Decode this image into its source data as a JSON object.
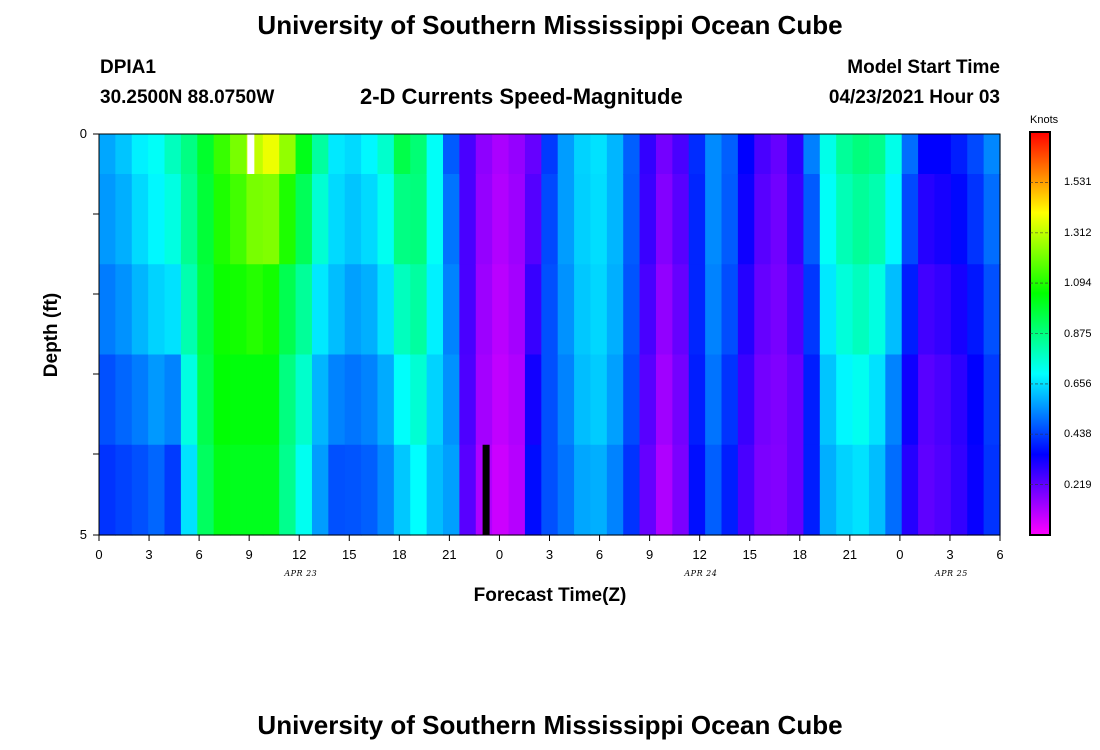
{
  "page": {
    "title_top": "University of Southern Mississippi Ocean Cube",
    "title_bottom": "University of Southern Mississippi Ocean Cube",
    "station_id": "DPIA1",
    "coordinates": "30.2500N  88.0750W",
    "plot_title": "2-D Currents Speed-Magnitude",
    "model_start_label": "Model Start Time",
    "model_start_value": "04/23/2021 Hour 03"
  },
  "chart_data": {
    "type": "heatmap",
    "title": "2-D Currents Speed-Magnitude",
    "xlabel": "Forecast Time(Z)",
    "ylabel": "Depth (ft)",
    "ylim": [
      0,
      5
    ],
    "y_tick_labels": [
      "0",
      "5"
    ],
    "x_tick_labels": [
      "0",
      "3",
      "6",
      "9",
      "12",
      "15",
      "18",
      "21",
      "0",
      "3",
      "6",
      "9",
      "12",
      "15",
      "18",
      "21",
      "0",
      "3",
      "6"
    ],
    "date_labels": [
      "APR 23",
      "APR 24",
      "APR 25"
    ],
    "colorbar": {
      "unit": "Knots",
      "tick_labels": [
        "0.219",
        "0.438",
        "0.656",
        "0.875",
        "1.094",
        "1.312",
        "1.531"
      ],
      "ticks": [
        0.219,
        0.438,
        0.656,
        0.875,
        1.094,
        1.312,
        1.531
      ],
      "range": [
        0,
        1.75
      ]
    },
    "x_range_hours": [
      0,
      54
    ],
    "depth_layers": 5,
    "markers": [
      {
        "color": "#ffffff",
        "hour": 9.1,
        "layer": 0
      },
      {
        "color": "#000000",
        "hour": 23.2,
        "layer": 4
      }
    ],
    "speeds": [
      [
        0.6,
        0.56,
        0.56,
        0.48,
        0.44,
        0.4
      ],
      [
        0.64,
        0.6,
        0.58,
        0.52,
        0.46,
        0.42
      ],
      [
        0.7,
        0.66,
        0.64,
        0.56,
        0.48,
        0.44
      ],
      [
        0.72,
        0.7,
        0.68,
        0.6,
        0.52,
        0.46
      ],
      [
        0.82,
        0.76,
        0.72,
        0.6,
        0.46,
        0.4
      ],
      [
        0.88,
        0.86,
        0.84,
        0.78,
        0.7,
        0.62
      ],
      [
        1.0,
        0.98,
        0.97,
        0.95,
        0.94,
        0.9
      ],
      [
        1.15,
        1.1,
        1.08,
        1.05,
        1.04,
        1.0
      ],
      [
        1.25,
        1.18,
        1.1,
        1.05,
        1.02,
        1.0
      ],
      [
        1.35,
        1.28,
        1.15,
        1.05,
        1.02,
        1.0
      ],
      [
        1.4,
        1.35,
        1.1,
        1.05,
        1.02,
        1.0
      ],
      [
        1.3,
        1.2,
        0.98,
        0.9,
        0.85,
        0.86
      ],
      [
        1.05,
        0.98,
        0.88,
        0.8,
        0.74,
        0.7
      ],
      [
        0.86,
        0.8,
        0.72,
        0.62,
        0.58,
        0.55
      ],
      [
        0.68,
        0.66,
        0.64,
        0.58,
        0.48,
        0.44
      ],
      [
        0.66,
        0.64,
        0.6,
        0.54,
        0.48,
        0.45
      ],
      [
        0.7,
        0.68,
        0.62,
        0.56,
        0.5,
        0.46
      ],
      [
        0.8,
        0.74,
        0.7,
        0.62,
        0.55,
        0.52
      ],
      [
        0.98,
        0.92,
        0.82,
        0.76,
        0.65,
        0.6
      ],
      [
        0.88,
        0.9,
        0.86,
        0.8,
        0.72,
        0.68
      ],
      [
        0.7,
        0.72,
        0.7,
        0.66,
        0.62,
        0.6
      ],
      [
        0.45,
        0.5,
        0.52,
        0.54,
        0.56,
        0.58
      ],
      [
        0.25,
        0.25,
        0.25,
        0.25,
        0.24,
        0.22
      ],
      [
        0.16,
        0.15,
        0.14,
        0.13,
        0.12,
        0.1
      ],
      [
        0.12,
        0.11,
        0.1,
        0.09,
        0.08,
        0.06
      ],
      [
        0.15,
        0.14,
        0.13,
        0.12,
        0.1,
        0.1
      ],
      [
        0.2,
        0.22,
        0.25,
        0.3,
        0.35,
        0.38
      ],
      [
        0.42,
        0.44,
        0.46,
        0.46,
        0.46,
        0.46
      ],
      [
        0.56,
        0.57,
        0.56,
        0.54,
        0.52,
        0.5
      ],
      [
        0.64,
        0.64,
        0.63,
        0.62,
        0.6,
        0.56
      ],
      [
        0.66,
        0.66,
        0.65,
        0.64,
        0.62,
        0.56
      ],
      [
        0.6,
        0.6,
        0.6,
        0.58,
        0.56,
        0.5
      ],
      [
        0.48,
        0.48,
        0.47,
        0.46,
        0.44,
        0.4
      ],
      [
        0.28,
        0.28,
        0.26,
        0.24,
        0.22,
        0.2
      ],
      [
        0.2,
        0.18,
        0.16,
        0.14,
        0.12,
        0.1
      ],
      [
        0.26,
        0.24,
        0.22,
        0.2,
        0.18,
        0.18
      ],
      [
        0.42,
        0.4,
        0.4,
        0.4,
        0.38,
        0.36
      ],
      [
        0.54,
        0.54,
        0.54,
        0.52,
        0.5,
        0.46
      ],
      [
        0.48,
        0.48,
        0.47,
        0.44,
        0.4,
        0.38
      ],
      [
        0.36,
        0.34,
        0.32,
        0.28,
        0.26,
        0.24
      ],
      [
        0.26,
        0.24,
        0.22,
        0.2,
        0.18,
        0.18
      ],
      [
        0.22,
        0.2,
        0.19,
        0.18,
        0.17,
        0.17
      ],
      [
        0.3,
        0.28,
        0.26,
        0.22,
        0.2,
        0.22
      ],
      [
        0.55,
        0.5,
        0.45,
        0.4,
        0.38,
        0.4
      ],
      [
        0.74,
        0.72,
        0.7,
        0.64,
        0.6,
        0.58
      ],
      [
        0.86,
        0.82,
        0.78,
        0.72,
        0.66,
        0.62
      ],
      [
        0.9,
        0.86,
        0.82,
        0.76,
        0.68,
        0.64
      ],
      [
        0.88,
        0.84,
        0.78,
        0.7,
        0.62,
        0.6
      ],
      [
        0.74,
        0.72,
        0.66,
        0.56,
        0.5,
        0.5
      ],
      [
        0.52,
        0.48,
        0.42,
        0.36,
        0.3,
        0.3
      ],
      [
        0.38,
        0.32,
        0.28,
        0.24,
        0.22,
        0.22
      ],
      [
        0.36,
        0.34,
        0.3,
        0.26,
        0.24,
        0.24
      ],
      [
        0.4,
        0.38,
        0.34,
        0.3,
        0.28,
        0.28
      ],
      [
        0.46,
        0.44,
        0.4,
        0.36,
        0.34,
        0.34
      ],
      [
        0.55,
        0.52,
        0.48,
        0.44,
        0.42,
        0.42
      ]
    ]
  }
}
